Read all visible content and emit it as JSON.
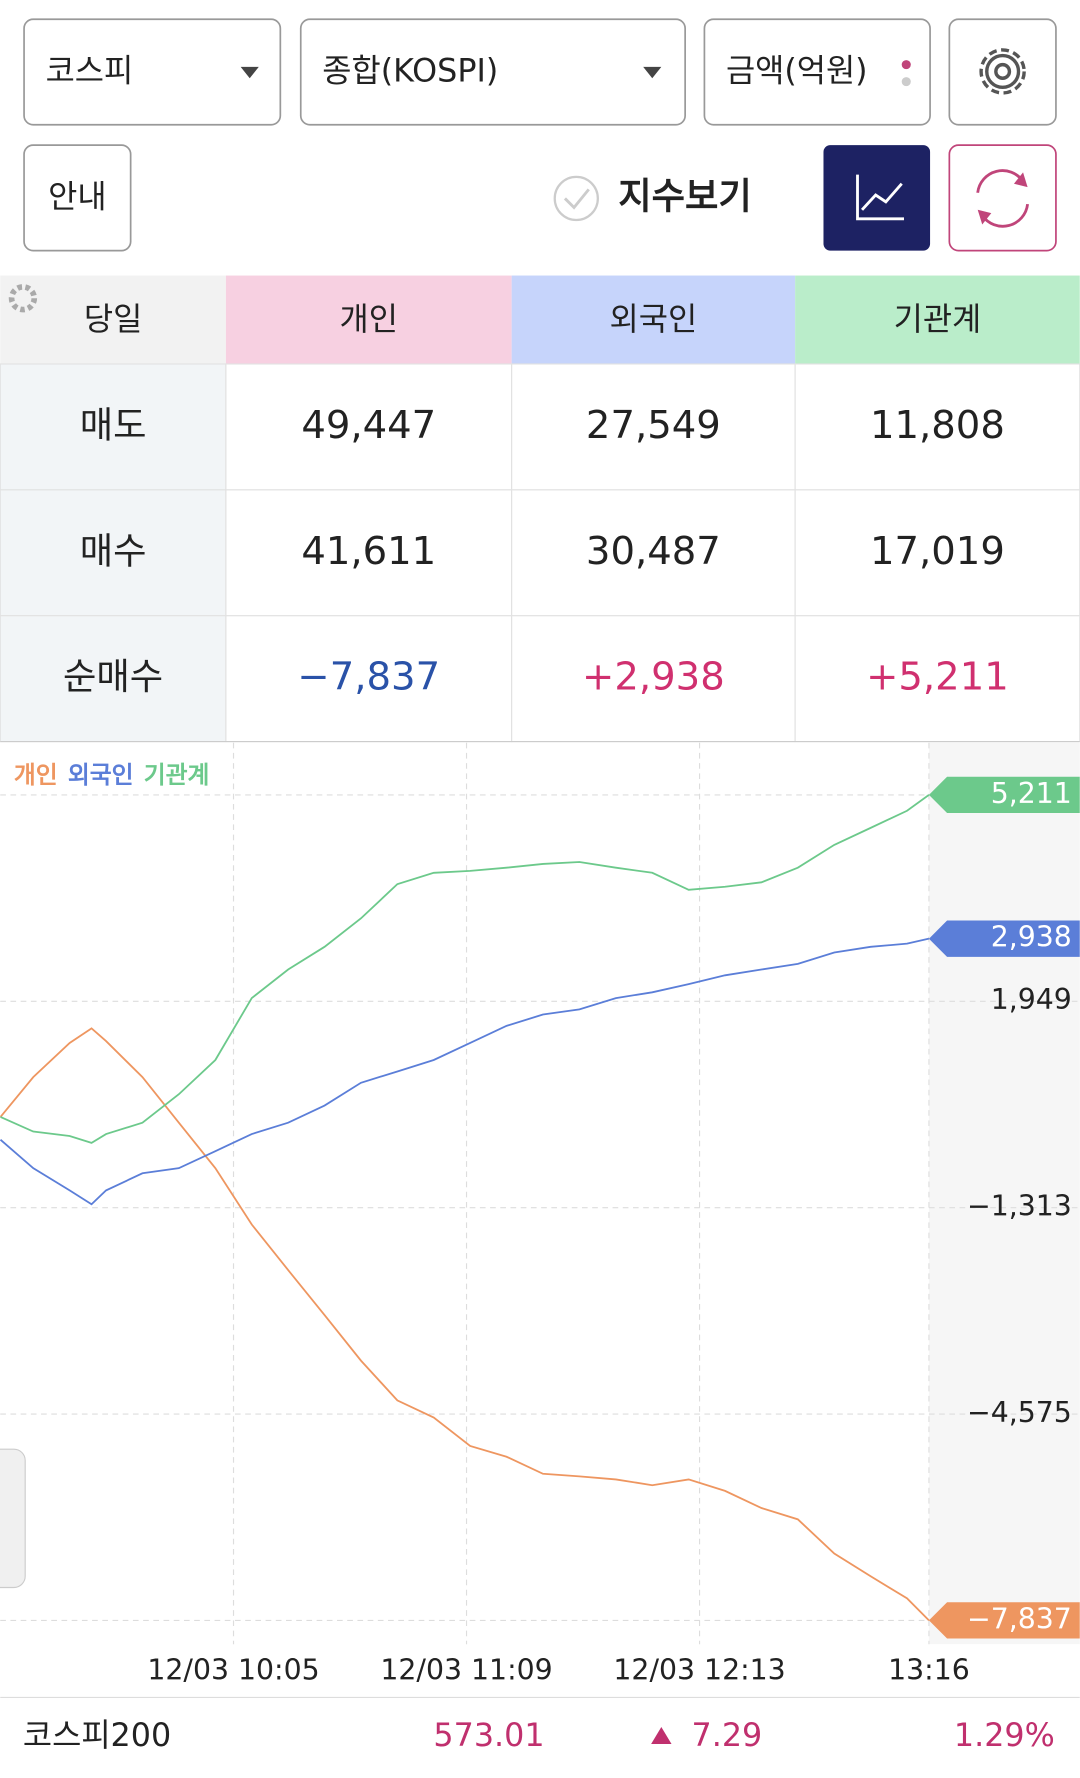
{
  "controls": {
    "market": "코스피",
    "index": "종합(KOSPI)",
    "unit": "금액(억원)",
    "guide": "안내",
    "show_index": "지수보기"
  },
  "table": {
    "header": [
      "당일",
      "개인",
      "외국인",
      "기관계"
    ],
    "rows": [
      [
        "매도",
        "49,447",
        "27,549",
        "11,808"
      ],
      [
        "매수",
        "41,611",
        "30,487",
        "17,019"
      ],
      [
        "순매수",
        "−7,837",
        "+2,938",
        "+5,211"
      ]
    ]
  },
  "chart_data": {
    "type": "line",
    "x": [
      541,
      550,
      560,
      566,
      570,
      580,
      590,
      600,
      610,
      620,
      630,
      640,
      650,
      660,
      670,
      680,
      690,
      700,
      710,
      720,
      730,
      740,
      750,
      760,
      770,
      780,
      790,
      796
    ],
    "xlim": [
      540,
      796
    ],
    "xticks": [
      {
        "value": 605,
        "label": "12/03 10:05"
      },
      {
        "value": 669,
        "label": "12/03 11:09"
      },
      {
        "value": 733,
        "label": "12/03 12:13"
      },
      {
        "value": 796,
        "label": "13:16"
      }
    ],
    "ylim": [
      -7837,
      5211
    ],
    "yticks": [
      {
        "value": 1949,
        "label": "1,949"
      },
      {
        "value": -1313,
        "label": "−1,313"
      },
      {
        "value": -4575,
        "label": "−4,575"
      }
    ],
    "grid": true,
    "series": [
      {
        "name": "개인",
        "color": "#ee9660",
        "values": [
          120,
          750,
          1290,
          1520,
          1320,
          750,
          30,
          -690,
          -1580,
          -2300,
          -3010,
          -3730,
          -4360,
          -4630,
          -5080,
          -5250,
          -5520,
          -5560,
          -5610,
          -5700,
          -5610,
          -5790,
          -6060,
          -6240,
          -6780,
          -7140,
          -7490,
          -7837
        ],
        "value_labels": [
          null,
          null,
          null,
          null,
          null,
          null,
          null,
          null,
          null,
          null,
          null,
          null,
          null,
          null,
          null,
          null,
          null,
          null,
          null,
          null,
          null,
          null,
          null,
          null,
          null,
          null,
          null,
          "−7,837"
        ]
      },
      {
        "name": "외국인",
        "color": "#5b7ed8",
        "values": [
          -240,
          -690,
          -1040,
          -1260,
          -1040,
          -770,
          -690,
          -420,
          -150,
          30,
          300,
          660,
          840,
          1020,
          1290,
          1560,
          1740,
          1820,
          2000,
          2090,
          2220,
          2360,
          2450,
          2540,
          2720,
          2810,
          2860,
          2938
        ],
        "value_labels": [
          null,
          null,
          null,
          null,
          null,
          null,
          null,
          null,
          null,
          null,
          null,
          null,
          null,
          null,
          null,
          null,
          null,
          null,
          null,
          null,
          null,
          null,
          null,
          null,
          null,
          null,
          null,
          "2,938"
        ]
      },
      {
        "name": "기관계",
        "color": "#6cc98b",
        "values": [
          120,
          -110,
          -180,
          -290,
          -150,
          30,
          480,
          1020,
          2000,
          2450,
          2810,
          3260,
          3800,
          3980,
          4010,
          4060,
          4120,
          4150,
          4060,
          3980,
          3710,
          3760,
          3830,
          4060,
          4420,
          4690,
          4960,
          5211
        ],
        "value_labels": [
          null,
          null,
          null,
          null,
          null,
          null,
          null,
          null,
          null,
          null,
          null,
          null,
          null,
          null,
          null,
          null,
          null,
          null,
          null,
          null,
          null,
          null,
          null,
          null,
          null,
          null,
          null,
          "5,211"
        ]
      }
    ]
  },
  "footer": {
    "name": "코스피200",
    "price": "573.01",
    "change": "7.29",
    "rate": "1.29%"
  }
}
